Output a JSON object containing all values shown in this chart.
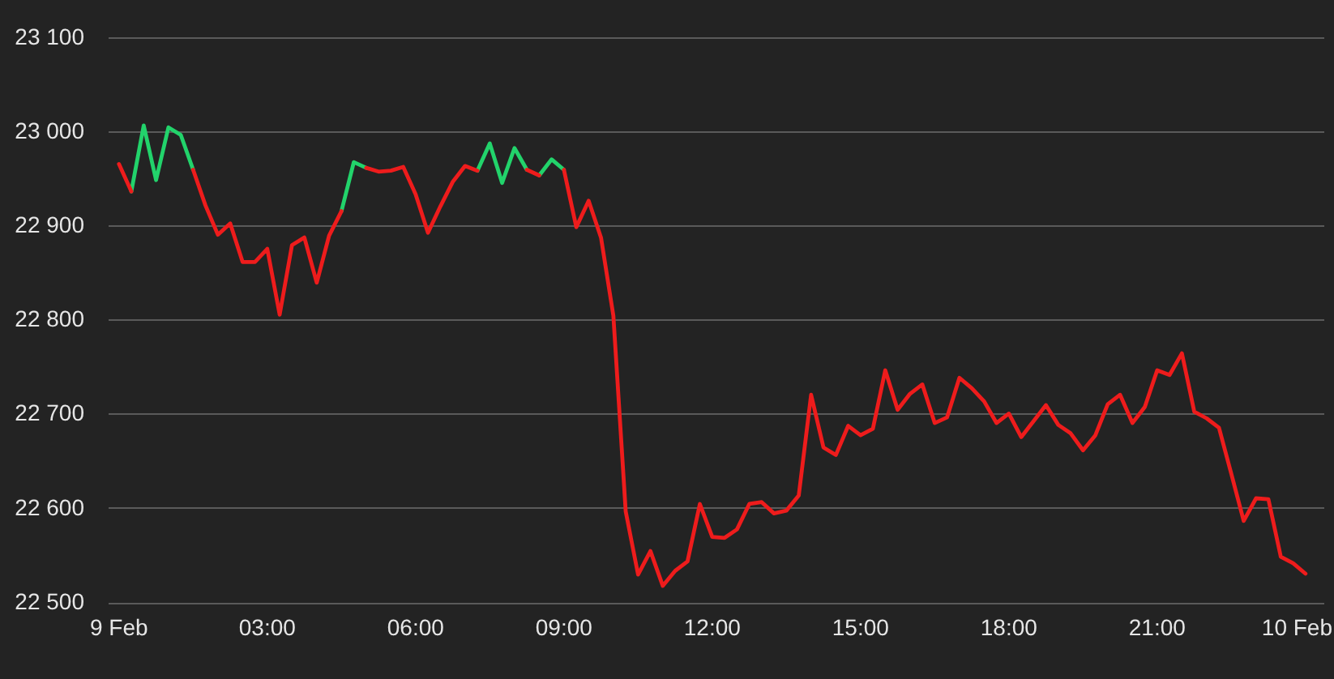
{
  "chart_data": {
    "type": "line",
    "x": [
      0,
      0.25,
      0.5,
      0.75,
      1,
      1.25,
      1.5,
      1.75,
      2,
      2.25,
      2.5,
      2.75,
      3,
      3.25,
      3.5,
      3.75,
      4,
      4.25,
      4.5,
      4.75,
      5,
      5.25,
      5.5,
      5.75,
      6,
      6.25,
      6.5,
      6.75,
      7,
      7.25,
      7.5,
      7.75,
      8,
      8.25,
      8.5,
      8.75,
      9,
      9.25,
      9.5,
      9.75,
      10,
      10.25,
      10.5,
      10.75,
      11,
      11.25,
      11.5,
      11.75,
      12,
      12.25,
      12.5,
      12.75,
      13,
      13.25,
      13.5,
      13.75,
      14,
      14.25,
      14.5,
      14.75,
      15,
      15.25,
      15.5,
      15.75,
      16,
      16.25,
      16.5,
      16.75,
      17,
      17.25,
      17.5,
      17.75,
      18,
      18.25,
      18.5,
      18.75,
      19,
      19.25,
      19.5,
      19.75,
      20,
      20.25,
      20.5,
      20.75,
      21,
      21.25,
      21.5,
      21.75,
      22,
      22.25,
      22.5,
      22.75,
      23,
      23.25,
      23.5,
      23.75,
      24
    ],
    "series": [
      {
        "color": "#ee1c1c",
        "values": [
          22966,
          22937,
          null,
          null,
          null,
          null,
          22960,
          22922,
          22891,
          22903,
          22862,
          22862,
          22876,
          22806,
          22880,
          22888,
          22840,
          22890,
          22916,
          null,
          22962,
          22958,
          22959,
          22963,
          22934,
          22893,
          22921,
          22947,
          22964,
          22959,
          null,
          null,
          null,
          22960,
          22954,
          null,
          22960,
          22899,
          22927,
          22888,
          22805,
          22597,
          22530,
          22555,
          22518,
          22534,
          22544,
          22605,
          22570,
          22569,
          22578,
          22605,
          22607,
          22595,
          22598,
          22614,
          22721,
          22665,
          22657,
          22688,
          22678,
          22685,
          22747,
          22705,
          22722,
          22732,
          22691,
          22697,
          22739,
          22728,
          22714,
          22691,
          22701,
          22676,
          22693,
          22710,
          22689,
          22680,
          22662,
          22678,
          22711,
          22721,
          22691,
          22708,
          22747,
          22742,
          22765,
          22703,
          22696,
          22686,
          22637,
          22587,
          22611,
          22610,
          22549,
          22542,
          22531
        ]
      },
      {
        "color": "#22d36b",
        "x": [
          0.25,
          0.5,
          0.75,
          1,
          1.25,
          1.5,
          1.75,
          4.5,
          4.75,
          5,
          5.25,
          7.25,
          7.5,
          7.75,
          8,
          8.25
        ],
        "values": [
          22937,
          23007,
          22949,
          23005,
          22997,
          22960,
          null,
          22916,
          22968,
          22962,
          null,
          22959,
          22988,
          22946,
          22983,
          22960
        ]
      },
      {
        "color": "#22d36b",
        "x": [
          8.5,
          8.75,
          9
        ],
        "values": [
          22954,
          22971,
          22960
        ]
      }
    ],
    "xlim": [
      -0.21,
      24.38
    ],
    "xticks": [
      {
        "value": 0,
        "label": "9 Feb"
      },
      {
        "value": 3,
        "label": "03:00"
      },
      {
        "value": 6,
        "label": "06:00"
      },
      {
        "value": 9,
        "label": "09:00"
      },
      {
        "value": 12,
        "label": "12:00"
      },
      {
        "value": 15,
        "label": "15:00"
      },
      {
        "value": 18,
        "label": "18:00"
      },
      {
        "value": 21,
        "label": "21:00"
      },
      {
        "value": 24,
        "label": "10 Feb"
      }
    ],
    "ylim": [
      22500,
      23100
    ],
    "yticks": [
      {
        "value": 22500,
        "label": "22 500"
      },
      {
        "value": 22600,
        "label": "22 600"
      },
      {
        "value": 22700,
        "label": "22 700"
      },
      {
        "value": 22800,
        "label": "22 800"
      },
      {
        "value": 22900,
        "label": "22 900"
      },
      {
        "value": 23000,
        "label": "23 000"
      },
      {
        "value": 23100,
        "label": "23 100"
      }
    ],
    "grid": "y",
    "marker": "none",
    "line_style": "solid"
  }
}
